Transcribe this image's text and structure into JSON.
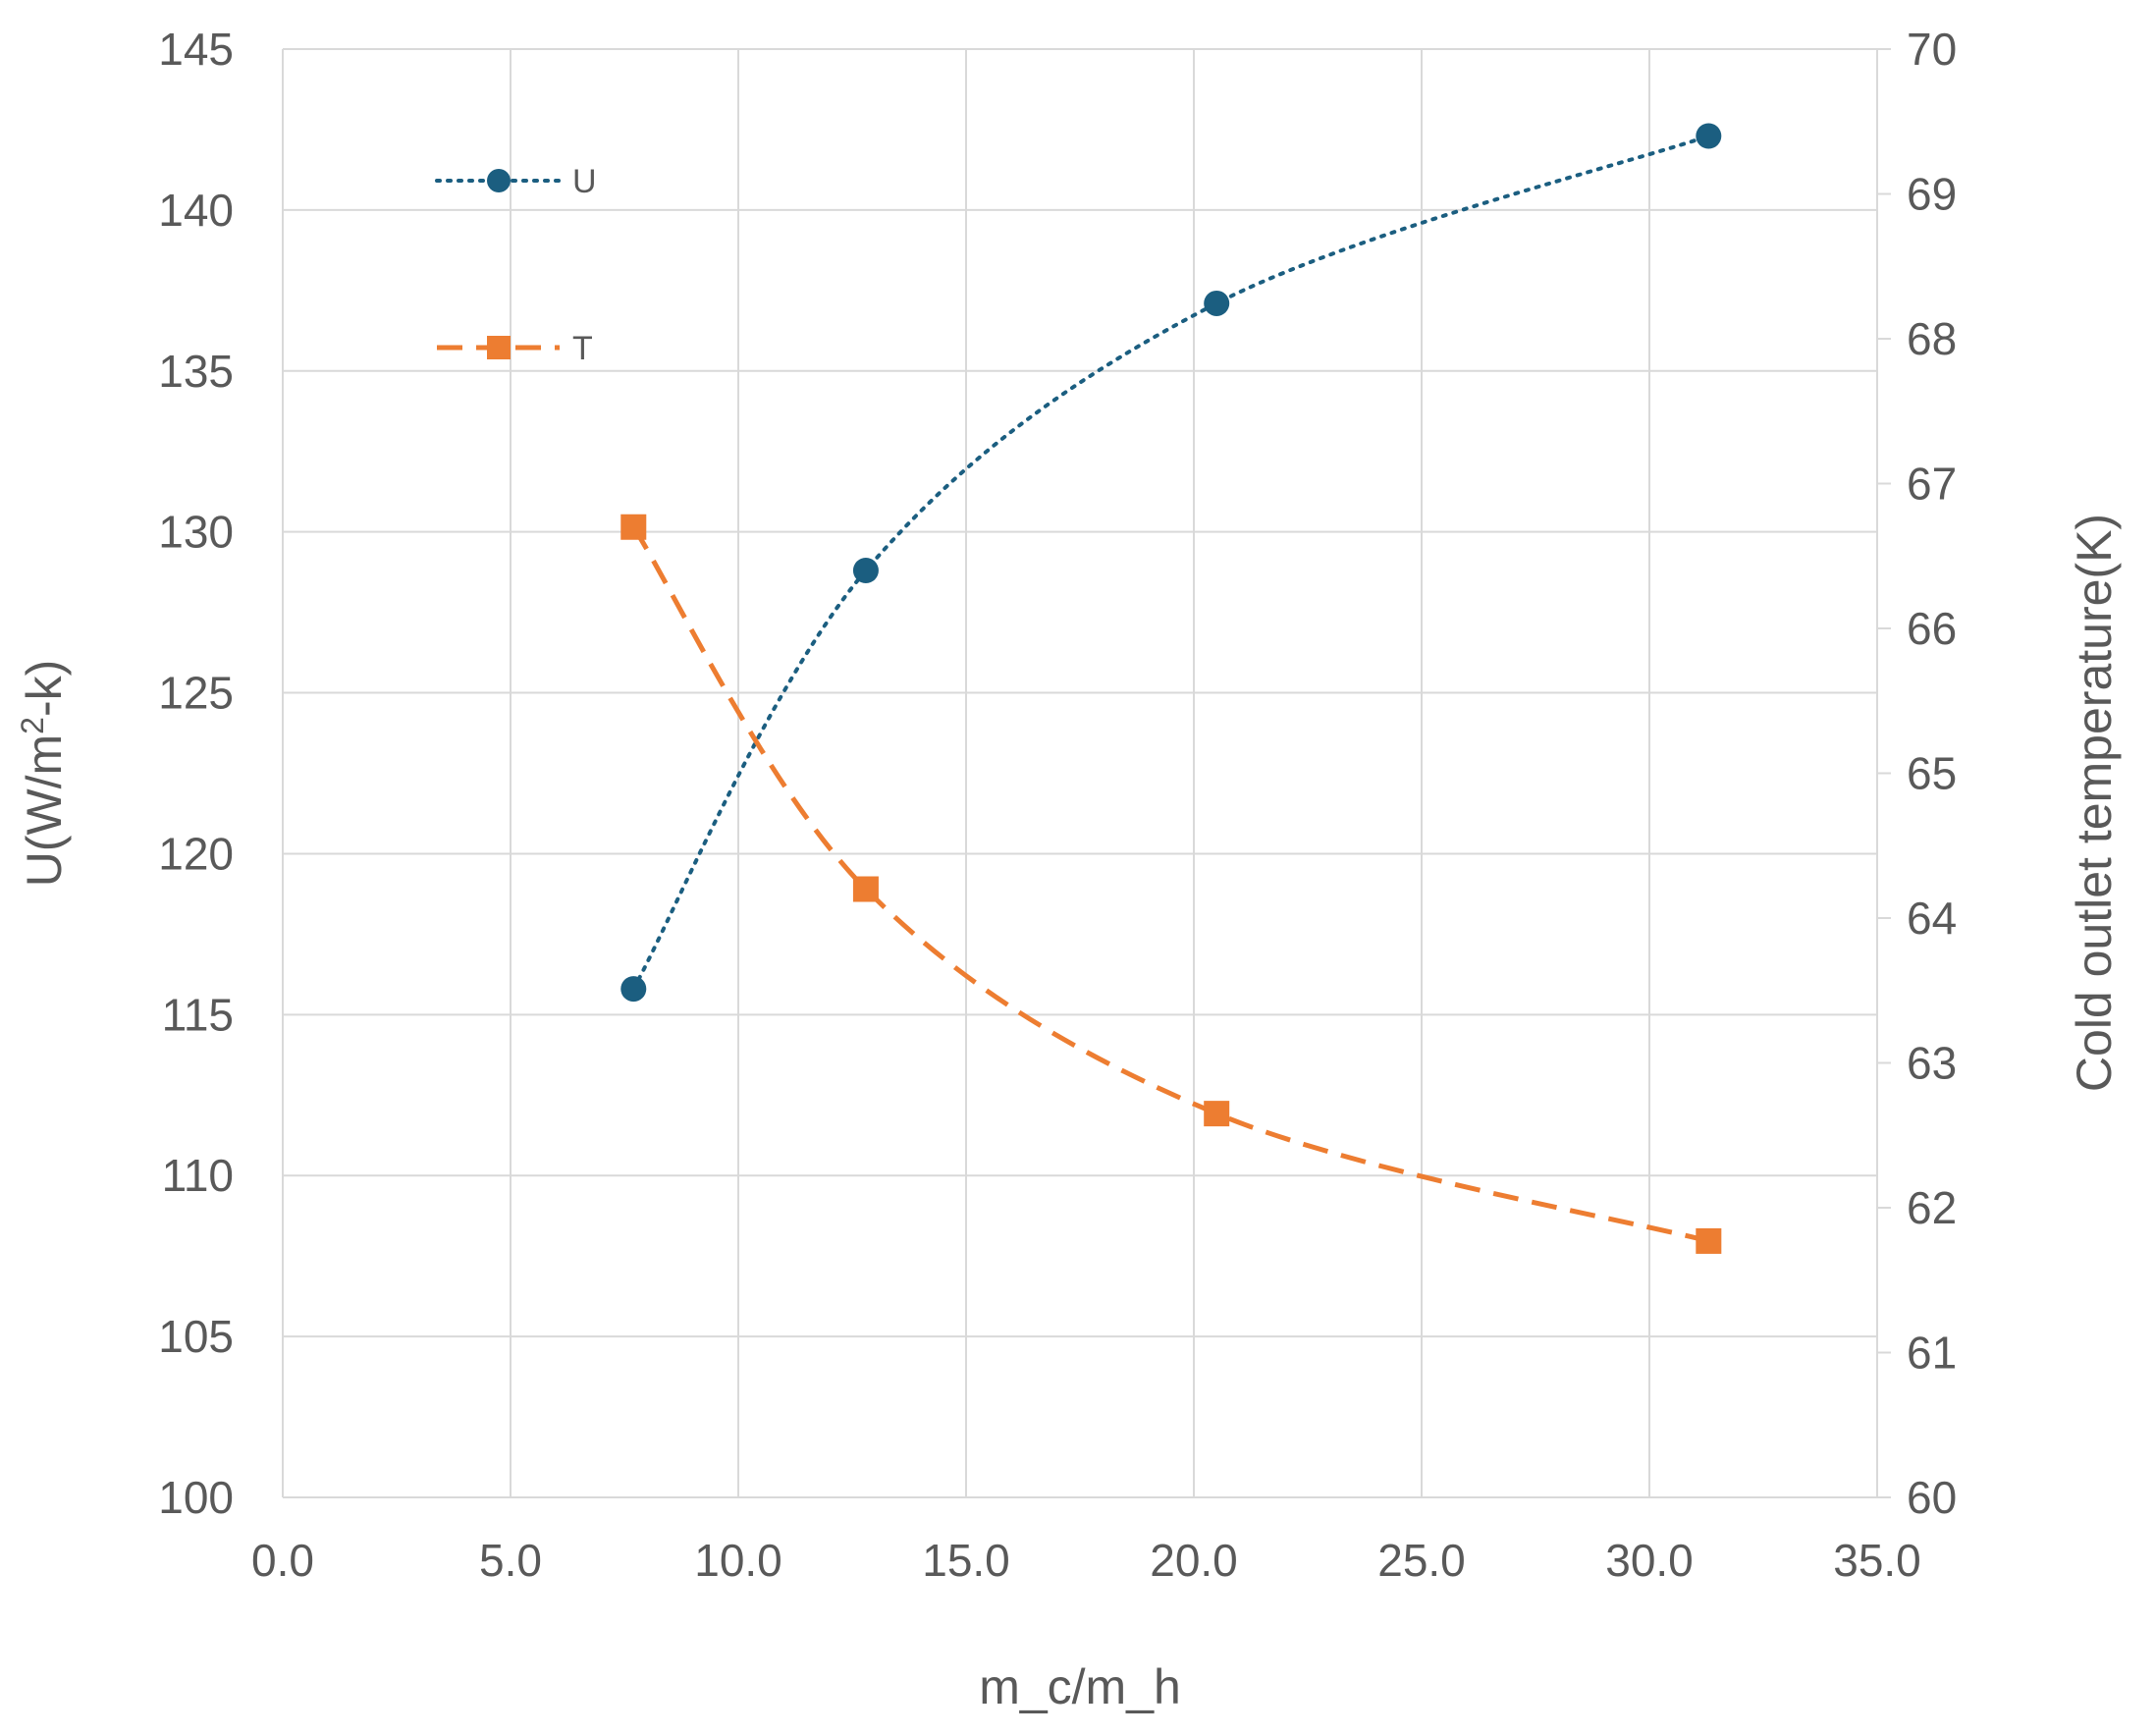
{
  "chart_data": {
    "type": "line",
    "title": "",
    "xlabel": "m_c/m_h",
    "ylabel_left": "U(W/m²-k)",
    "ylabel_left_parts": {
      "before": "U(W/m",
      "sup": "2",
      "after": "-k)"
    },
    "ylabel_right": "Cold outlet temperature(K)",
    "xlim": [
      0,
      35
    ],
    "ylim_left": [
      100,
      145
    ],
    "ylim_right": [
      60,
      70
    ],
    "x_ticks": [
      "0.0",
      "5.0",
      "10.0",
      "15.0",
      "20.0",
      "25.0",
      "30.0",
      "35.0"
    ],
    "y_left_ticks": [
      "100",
      "105",
      "110",
      "115",
      "120",
      "125",
      "130",
      "135",
      "140",
      "145"
    ],
    "y_right_ticks": [
      "60",
      "61",
      "62",
      "63",
      "64",
      "65",
      "66",
      "67",
      "68",
      "69",
      "70"
    ],
    "grid": true,
    "legend_position": "top-left",
    "series": [
      {
        "name": "U",
        "axis": "left",
        "color": "#1b5e80",
        "line_style": "dotted",
        "marker": "circle",
        "x": [
          7.7,
          12.8,
          20.5,
          31.3
        ],
        "y": [
          115.8,
          128.8,
          137.1,
          142.3
        ]
      },
      {
        "name": "T",
        "axis": "right",
        "color": "#ed7d31",
        "line_style": "dashed",
        "marker": "square",
        "x": [
          7.7,
          12.8,
          20.5,
          31.3
        ],
        "y": [
          66.7,
          64.2,
          62.65,
          61.77
        ]
      }
    ]
  }
}
